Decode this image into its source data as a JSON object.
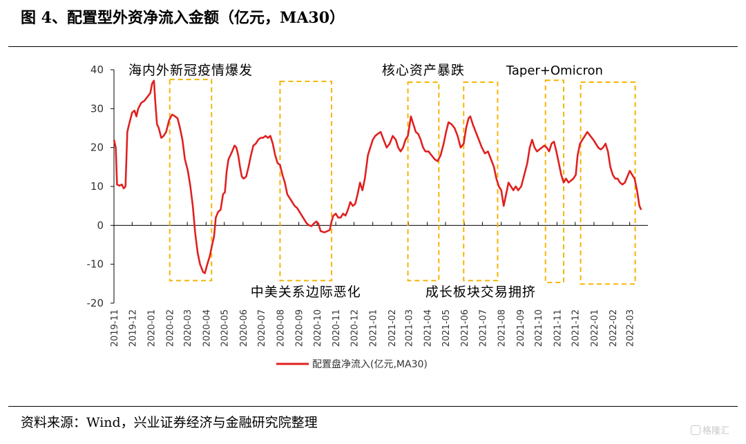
{
  "figure_title": "图 4、配置型外资净流入金额（亿元，MA30）",
  "source": "资料来源：Wind，兴业证券经济与金融研究院整理",
  "watermark": "格隆汇",
  "colors": {
    "series": "#e02020",
    "box": "#f5b400",
    "axis": "#000000",
    "text": "#333333"
  },
  "chart_data": {
    "type": "line",
    "title": "图 4、配置型外资净流入金额（亿元，MA30）",
    "xlabel": "",
    "ylabel": "",
    "ylim": [
      -20,
      40
    ],
    "y_ticks": [
      40,
      30,
      20,
      10,
      0,
      -10,
      -20
    ],
    "x_range": [
      "2019-11-01",
      "2022-03-31"
    ],
    "x_tick_labels": [
      "2019-11",
      "2019-12",
      "2020-01",
      "2020-02",
      "2020-03",
      "2020-04",
      "2020-05",
      "2020-06",
      "2020-07",
      "2020-08",
      "2020-09",
      "2020-10",
      "2020-11",
      "2020-12",
      "2021-01",
      "2021-02",
      "2021-03",
      "2021-04",
      "2021-05",
      "2021-06",
      "2021-07",
      "2021-08",
      "2021-09",
      "2021-10",
      "2021-11",
      "2021-12",
      "2022-01",
      "2022-02",
      "2022-03"
    ],
    "grid": false,
    "legend": "bottom",
    "legend_label": "配置盘净流入(亿元,MA30)",
    "series": [
      {
        "name": "配置盘净流入(亿元,MA30)",
        "points": [
          [
            "2019-11-01",
            22
          ],
          [
            "2019-11-04",
            20
          ],
          [
            "2019-11-06",
            10.5
          ],
          [
            "2019-11-10",
            10.2
          ],
          [
            "2019-11-14",
            10.5
          ],
          [
            "2019-11-17",
            9.5
          ],
          [
            "2019-11-20",
            10
          ],
          [
            "2019-11-23",
            24
          ],
          [
            "2019-11-26",
            26
          ],
          [
            "2019-12-01",
            29
          ],
          [
            "2019-12-05",
            29.5
          ],
          [
            "2019-12-08",
            28
          ],
          [
            "2019-12-11",
            30
          ],
          [
            "2019-12-16",
            31.5
          ],
          [
            "2019-12-21",
            32
          ],
          [
            "2019-12-26",
            33
          ],
          [
            "2019-12-31",
            34
          ],
          [
            "2020-01-03",
            36.5
          ],
          [
            "2020-01-06",
            37.2
          ],
          [
            "2020-01-08",
            32
          ],
          [
            "2020-01-11",
            26
          ],
          [
            "2020-01-14",
            25
          ],
          [
            "2020-01-18",
            22.5
          ],
          [
            "2020-01-22",
            23
          ],
          [
            "2020-01-26",
            24
          ],
          [
            "2020-01-31",
            27
          ],
          [
            "2020-02-05",
            28.5
          ],
          [
            "2020-02-10",
            28
          ],
          [
            "2020-02-14",
            27.5
          ],
          [
            "2020-02-18",
            25
          ],
          [
            "2020-02-22",
            22
          ],
          [
            "2020-02-26",
            17
          ],
          [
            "2020-03-02",
            14
          ],
          [
            "2020-03-06",
            10
          ],
          [
            "2020-03-10",
            5
          ],
          [
            "2020-03-14",
            -2
          ],
          [
            "2020-03-18",
            -7
          ],
          [
            "2020-03-22",
            -10
          ],
          [
            "2020-03-27",
            -12
          ],
          [
            "2020-03-30",
            -12.3
          ],
          [
            "2020-04-03",
            -10
          ],
          [
            "2020-04-07",
            -8
          ],
          [
            "2020-04-11",
            -5
          ],
          [
            "2020-04-14",
            -3
          ],
          [
            "2020-04-17",
            2
          ],
          [
            "2020-04-21",
            3.5
          ],
          [
            "2020-04-25",
            4
          ],
          [
            "2020-04-29",
            8
          ],
          [
            "2020-05-02",
            8.5
          ],
          [
            "2020-05-05",
            14
          ],
          [
            "2020-05-08",
            17
          ],
          [
            "2020-05-11",
            18
          ],
          [
            "2020-05-14",
            19
          ],
          [
            "2020-05-18",
            20.5
          ],
          [
            "2020-05-21",
            20
          ],
          [
            "2020-05-24",
            18
          ],
          [
            "2020-05-27",
            15
          ],
          [
            "2020-05-30",
            12.5
          ],
          [
            "2020-06-02",
            12
          ],
          [
            "2020-06-06",
            12.5
          ],
          [
            "2020-06-10",
            15
          ],
          [
            "2020-06-14",
            18
          ],
          [
            "2020-06-18",
            20.5
          ],
          [
            "2020-06-22",
            21
          ],
          [
            "2020-06-26",
            22
          ],
          [
            "2020-06-30",
            22.5
          ],
          [
            "2020-07-04",
            22.5
          ],
          [
            "2020-07-08",
            23
          ],
          [
            "2020-07-12",
            22.5
          ],
          [
            "2020-07-16",
            23
          ],
          [
            "2020-07-20",
            21
          ],
          [
            "2020-07-24",
            18
          ],
          [
            "2020-07-28",
            16
          ],
          [
            "2020-08-01",
            15.5
          ],
          [
            "2020-08-05",
            13
          ],
          [
            "2020-08-09",
            11
          ],
          [
            "2020-08-13",
            8
          ],
          [
            "2020-08-17",
            7
          ],
          [
            "2020-08-21",
            6
          ],
          [
            "2020-08-25",
            5
          ],
          [
            "2020-08-29",
            4.5
          ],
          [
            "2020-09-02",
            3.5
          ],
          [
            "2020-09-06",
            2.5
          ],
          [
            "2020-09-10",
            1.5
          ],
          [
            "2020-09-14",
            0.5
          ],
          [
            "2020-09-18",
            0
          ],
          [
            "2020-09-22",
            -0.2
          ],
          [
            "2020-09-26",
            0.5
          ],
          [
            "2020-09-30",
            1
          ],
          [
            "2020-10-03",
            0.5
          ],
          [
            "2020-10-07",
            -1.5
          ],
          [
            "2020-10-13",
            -1.8
          ],
          [
            "2020-10-18",
            -1.5
          ],
          [
            "2020-10-22",
            -1.2
          ],
          [
            "2020-10-25",
            1
          ],
          [
            "2020-10-28",
            2.5
          ],
          [
            "2020-11-01",
            3
          ],
          [
            "2020-11-05",
            2
          ],
          [
            "2020-11-09",
            2
          ],
          [
            "2020-11-13",
            3
          ],
          [
            "2020-11-17",
            2.5
          ],
          [
            "2020-11-21",
            4
          ],
          [
            "2020-11-25",
            6
          ],
          [
            "2020-11-29",
            5
          ],
          [
            "2020-12-03",
            5.5
          ],
          [
            "2020-12-07",
            8
          ],
          [
            "2020-12-11",
            11
          ],
          [
            "2020-12-15",
            9
          ],
          [
            "2020-12-19",
            12
          ],
          [
            "2020-12-24",
            18
          ],
          [
            "2020-12-28",
            20
          ],
          [
            "2021-01-01",
            22
          ],
          [
            "2021-01-05",
            23
          ],
          [
            "2021-01-09",
            23.5
          ],
          [
            "2021-01-14",
            24
          ],
          [
            "2021-01-19",
            22
          ],
          [
            "2021-01-24",
            20
          ],
          [
            "2021-01-29",
            21
          ],
          [
            "2021-02-03",
            23
          ],
          [
            "2021-02-08",
            22
          ],
          [
            "2021-02-12",
            20
          ],
          [
            "2021-02-16",
            19
          ],
          [
            "2021-02-20",
            20
          ],
          [
            "2021-02-24",
            22
          ],
          [
            "2021-02-28",
            23
          ],
          [
            "2021-03-02",
            25
          ],
          [
            "2021-03-05",
            28
          ],
          [
            "2021-03-09",
            26
          ],
          [
            "2021-03-13",
            24
          ],
          [
            "2021-03-17",
            23.5
          ],
          [
            "2021-03-21",
            22
          ],
          [
            "2021-03-25",
            20
          ],
          [
            "2021-03-29",
            19
          ],
          [
            "2021-04-03",
            19
          ],
          [
            "2021-04-08",
            18
          ],
          [
            "2021-04-13",
            17
          ],
          [
            "2021-04-18",
            16.5
          ],
          [
            "2021-04-23",
            18
          ],
          [
            "2021-04-28",
            21
          ],
          [
            "2021-05-02",
            24
          ],
          [
            "2021-05-06",
            26.5
          ],
          [
            "2021-05-11",
            26
          ],
          [
            "2021-05-16",
            25
          ],
          [
            "2021-05-21",
            23
          ],
          [
            "2021-05-26",
            20
          ],
          [
            "2021-05-31",
            21
          ],
          [
            "2021-06-04",
            25
          ],
          [
            "2021-06-08",
            27.5
          ],
          [
            "2021-06-11",
            28
          ],
          [
            "2021-06-15",
            26
          ],
          [
            "2021-06-20",
            24
          ],
          [
            "2021-06-25",
            22
          ],
          [
            "2021-06-30",
            20
          ],
          [
            "2021-07-05",
            18.5
          ],
          [
            "2021-07-10",
            19
          ],
          [
            "2021-07-15",
            17
          ],
          [
            "2021-07-20",
            15
          ],
          [
            "2021-07-24",
            12
          ],
          [
            "2021-07-28",
            10
          ],
          [
            "2021-08-01",
            9
          ],
          [
            "2021-08-05",
            5
          ],
          [
            "2021-08-09",
            8
          ],
          [
            "2021-08-13",
            11
          ],
          [
            "2021-08-17",
            10
          ],
          [
            "2021-08-21",
            9
          ],
          [
            "2021-08-25",
            10
          ],
          [
            "2021-08-29",
            9
          ],
          [
            "2021-09-03",
            10
          ],
          [
            "2021-09-08",
            13
          ],
          [
            "2021-09-13",
            16
          ],
          [
            "2021-09-17",
            20
          ],
          [
            "2021-09-21",
            22
          ],
          [
            "2021-09-25",
            20
          ],
          [
            "2021-09-29",
            19
          ],
          [
            "2021-10-03",
            19.5
          ],
          [
            "2021-10-07",
            20
          ],
          [
            "2021-10-11",
            20.5
          ],
          [
            "2021-10-15",
            20
          ],
          [
            "2021-10-19",
            19
          ],
          [
            "2021-10-23",
            21
          ],
          [
            "2021-10-27",
            21.5
          ],
          [
            "2021-10-31",
            19
          ],
          [
            "2021-11-04",
            16
          ],
          [
            "2021-11-08",
            13
          ],
          [
            "2021-11-12",
            11
          ],
          [
            "2021-11-16",
            12
          ],
          [
            "2021-11-20",
            11
          ],
          [
            "2021-11-24",
            11.5
          ],
          [
            "2021-11-28",
            12
          ],
          [
            "2021-12-02",
            13
          ],
          [
            "2021-12-05",
            18
          ],
          [
            "2021-12-09",
            21
          ],
          [
            "2021-12-13",
            22
          ],
          [
            "2021-12-17",
            23
          ],
          [
            "2021-12-21",
            24
          ],
          [
            "2021-12-26",
            23
          ],
          [
            "2021-12-31",
            22
          ],
          [
            "2022-01-04",
            21
          ],
          [
            "2022-01-08",
            20
          ],
          [
            "2022-01-12",
            19.5
          ],
          [
            "2022-01-16",
            20
          ],
          [
            "2022-01-20",
            21
          ],
          [
            "2022-01-24",
            19
          ],
          [
            "2022-01-28",
            15
          ],
          [
            "2022-02-01",
            13
          ],
          [
            "2022-02-05",
            12
          ],
          [
            "2022-02-09",
            12
          ],
          [
            "2022-02-13",
            11
          ],
          [
            "2022-02-17",
            10.5
          ],
          [
            "2022-02-21",
            11
          ],
          [
            "2022-02-25",
            12.5
          ],
          [
            "2022-03-01",
            14
          ],
          [
            "2022-03-05",
            13
          ],
          [
            "2022-03-09",
            12
          ],
          [
            "2022-03-13",
            9
          ],
          [
            "2022-03-17",
            5
          ],
          [
            "2022-03-20",
            4
          ]
        ]
      }
    ],
    "annotations": [
      {
        "text": "海内外新冠疫情爆发",
        "start": "2020-02-01",
        "end": "2020-04-10",
        "y_top": 37.5,
        "y_bottom": -14.2,
        "label_side": "top"
      },
      {
        "text": "中美关系边际恶化",
        "start": "2020-08-01",
        "end": "2020-10-25",
        "y_top": 37,
        "y_bottom": -14.2,
        "label_side": "bottom"
      },
      {
        "text": "核心资产暴跌",
        "start": "2021-02-28",
        "end": "2021-04-20",
        "y_top": 36.8,
        "y_bottom": -14.2,
        "label_side": "top"
      },
      {
        "text": "成长板块交易拥挤",
        "start": "2021-05-31",
        "end": "2021-07-26",
        "y_top": 36.8,
        "y_bottom": -14.2,
        "label_side": "bottom"
      },
      {
        "text": "Taper+Omicron",
        "start": "2021-10-13",
        "end": "2021-11-12",
        "y_top": 37.3,
        "y_bottom": -14.7,
        "label_side": "top"
      },
      {
        "text": "",
        "start": "2021-12-10",
        "end": "2022-03-10",
        "y_top": 36.8,
        "y_bottom": -15.1,
        "label_side": "none"
      }
    ]
  }
}
